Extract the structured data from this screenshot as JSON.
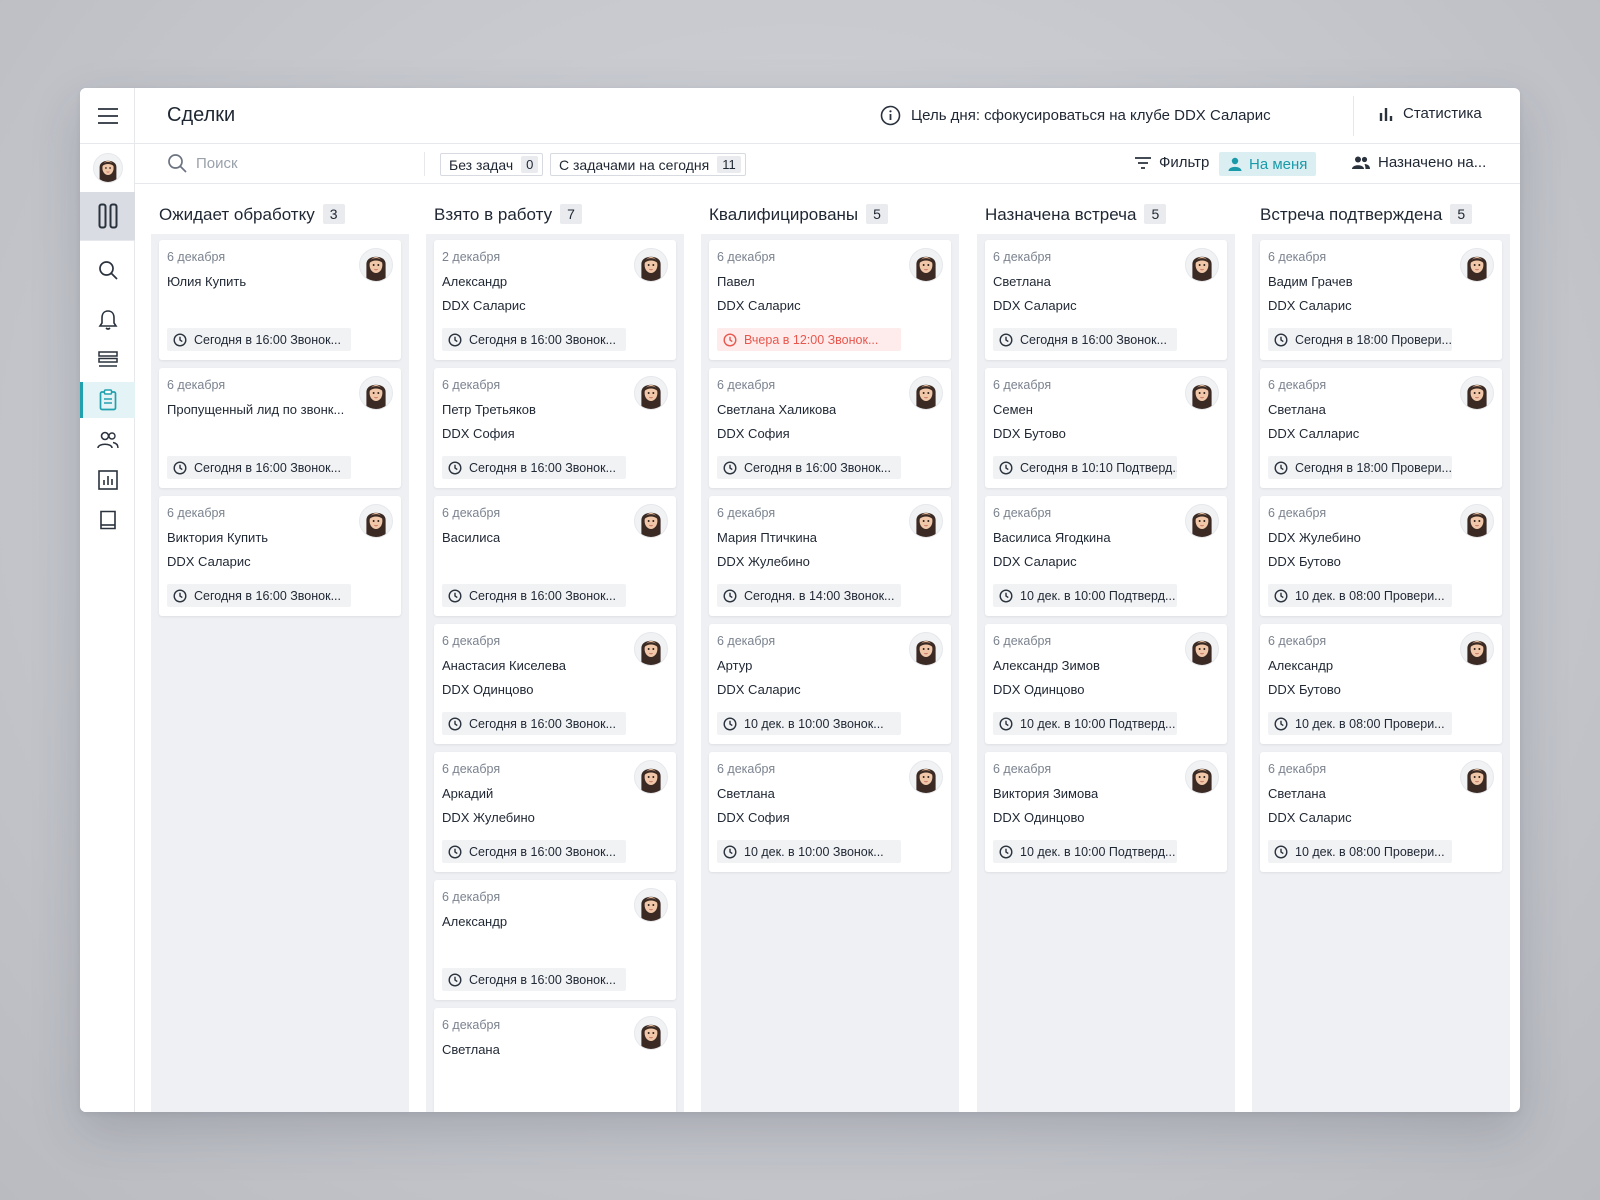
{
  "header": {
    "title": "Сделки",
    "goal": "Цель дня: сфокусироваться на клубе DDX Саларис",
    "stats_label": "Статистика"
  },
  "toolbar": {
    "search_placeholder": "Поиск",
    "chips": [
      {
        "label": "Без задач",
        "count": "0"
      },
      {
        "label": "С задачами на сегодня",
        "count": "11"
      }
    ],
    "filter_label": "Фильтр",
    "on_me_label": "На меня",
    "assigned_label": "Назначено на..."
  },
  "colors": {
    "accent": "#21a0ae",
    "col1": "#f0874c",
    "col2": "#41aab5",
    "col3": "#86c77e",
    "col4": "#ead97a",
    "col5": "#d9c15d",
    "overdue": "#e8574e"
  },
  "columns": [
    {
      "title": "Ожидает обработку",
      "count": "3",
      "color": "#f0874c",
      "cards": [
        {
          "date": "6 декабря",
          "name": "Юлия Купить",
          "club": "",
          "task": "Сегодня в 16:00 Звонок...",
          "overdue": false
        },
        {
          "date": "6 декабря",
          "name": "Пропущенный лид по звонк...",
          "club": "",
          "task": "Сегодня в 16:00 Звонок...",
          "overdue": false
        },
        {
          "date": "6 декабря",
          "name": "Виктория Купить",
          "club": "DDX Саларис",
          "task": "Сегодня в 16:00 Звонок...",
          "overdue": false
        }
      ]
    },
    {
      "title": "Взято в работу",
      "count": "7",
      "color": "#41aab5",
      "cards": [
        {
          "date": "2 декабря",
          "name": "Александр",
          "club": "DDX Саларис",
          "task": "Сегодня в 16:00 Звонок...",
          "overdue": false
        },
        {
          "date": "6 декабря",
          "name": "Петр Третьяков",
          "club": "DDX София",
          "task": "Сегодня в 16:00 Звонок...",
          "overdue": false
        },
        {
          "date": "6 декабря",
          "name": "Василиса",
          "club": "",
          "task": "Сегодня в 16:00 Звонок...",
          "overdue": false
        },
        {
          "date": "6 декабря",
          "name": "Анастасия Киселева",
          "club": "DDX Одинцово",
          "task": "Сегодня в 16:00 Звонок...",
          "overdue": false
        },
        {
          "date": "6 декабря",
          "name": "Аркадий",
          "club": "DDX Жулебино",
          "task": "Сегодня в 16:00 Звонок...",
          "overdue": false
        },
        {
          "date": "6 декабря",
          "name": "Александр",
          "club": "",
          "task": "Сегодня в 16:00 Звонок...",
          "overdue": false
        },
        {
          "date": "6 декабря",
          "name": "Светлана",
          "club": "",
          "task": "",
          "overdue": false
        }
      ]
    },
    {
      "title": "Квалифицированы",
      "count": "5",
      "color": "#86c77e",
      "cards": [
        {
          "date": "6 декабря",
          "name": "Павел",
          "club": "DDX Саларис",
          "task": "Вчера в 12:00 Звонок...",
          "overdue": true
        },
        {
          "date": "6 декабря",
          "name": "Светлана Халикова",
          "club": "DDX София",
          "task": "Сегодня в 16:00 Звонок...",
          "overdue": false
        },
        {
          "date": "6 декабря",
          "name": "Мария Птичкина",
          "club": "DDX Жулебино",
          "task": "Сегодня. в 14:00 Звонок...",
          "overdue": false
        },
        {
          "date": "6 декабря",
          "name": "Артур",
          "club": "DDX Саларис",
          "task": "10 дек. в  10:00 Звонок...",
          "overdue": false
        },
        {
          "date": "6 декабря",
          "name": "Светлана",
          "club": "DDX София",
          "task": "10 дек. в  10:00  Звонок...",
          "overdue": false
        }
      ]
    },
    {
      "title": "Назначена встреча",
      "count": "5",
      "color": "#ead97a",
      "cards": [
        {
          "date": "6 декабря",
          "name": "Светлана",
          "club": "DDX Саларис",
          "task": "Сегодня в 16:00 Звонок...",
          "overdue": false
        },
        {
          "date": "6 декабря",
          "name": "Семен",
          "club": "DDX Бутово",
          "task": "Сегодня в 10:10 Подтверд...",
          "overdue": false
        },
        {
          "date": "6 декабря",
          "name": "Василиса Ягодкина",
          "club": "DDX Саларис",
          "task": "10 дек. в  10:00 Подтверд...",
          "overdue": false
        },
        {
          "date": "6 декабря",
          "name": "Александр Зимов",
          "club": "DDX Одинцово",
          "task": "10 дек. в  10:00 Подтверд...",
          "overdue": false
        },
        {
          "date": "6 декабря",
          "name": "Виктория Зимова",
          "club": "DDX Одинцово",
          "task": "10 дек. в  10:00 Подтверд...",
          "overdue": false
        }
      ]
    },
    {
      "title": "Встреча подтверждена",
      "count": "5",
      "color": "#d9c15d",
      "cards": [
        {
          "date": "6 декабря",
          "name": "Вадим Грачев",
          "club": "DDX Саларис",
          "task": "Сегодня в 18:00 Провери...",
          "overdue": false
        },
        {
          "date": "6 декабря",
          "name": "Светлана",
          "club": "DDX Салларис",
          "task": "Сегодня в 18:00 Провери...",
          "overdue": false
        },
        {
          "date": "6 декабря",
          "name": "DDX Жулебино",
          "club": "DDX Бутово",
          "task": "10 дек. в 08:00 Провери...",
          "overdue": false
        },
        {
          "date": "6 декабря",
          "name": "Александр",
          "club": "DDX Бутово",
          "task": "10 дек. в 08:00 Провери...",
          "overdue": false
        },
        {
          "date": "6 декабря",
          "name": "Светлана",
          "club": "DDX Саларис",
          "task": "10 дек. в 08:00 Провери...",
          "overdue": false
        }
      ]
    }
  ]
}
